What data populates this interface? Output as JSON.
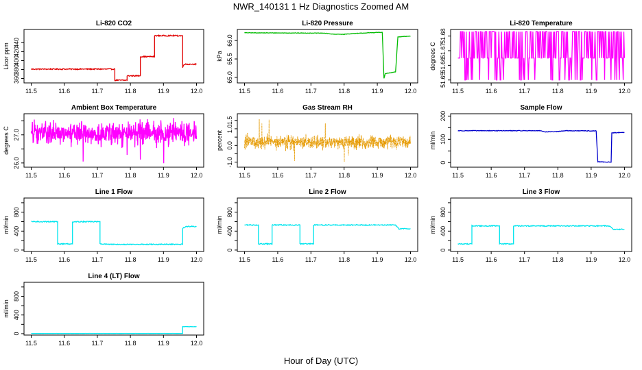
{
  "figure": {
    "title": "NWR_140131  1 Hz Diagnostics Zoomed AM",
    "xlabel": "Hour of Day (UTC)"
  },
  "chart_data": [
    {
      "type": "line",
      "title": "Li-820 CO2",
      "ylabel": "Licor ppm",
      "color": "#e00000",
      "xlim": [
        11.5,
        12.0
      ],
      "ylim": [
        350,
        470
      ],
      "yticks": [
        360,
        380,
        400,
        420,
        440
      ],
      "yticklabels": [
        "360",
        "380",
        "400",
        "420",
        "440"
      ],
      "series": [
        {
          "noise": 1.2,
          "points": [
            [
              11.5,
              381
            ],
            [
              11.753,
              381
            ],
            [
              11.753,
              356
            ],
            [
              11.79,
              356
            ],
            [
              11.79,
              366
            ],
            [
              11.83,
              366
            ],
            [
              11.83,
              409
            ],
            [
              11.873,
              409
            ],
            [
              11.873,
              456
            ],
            [
              11.958,
              456
            ],
            [
              11.958,
              384
            ],
            [
              11.962,
              392
            ],
            [
              12.0,
              392
            ]
          ]
        }
      ]
    },
    {
      "type": "line",
      "title": "Li-820 Pressure",
      "ylabel": "kPa",
      "color": "#00bb00",
      "xlim": [
        11.5,
        12.0
      ],
      "ylim": [
        64.85,
        66.3
      ],
      "yticks": [
        65.0,
        65.5,
        66.0
      ],
      "yticklabels": [
        "65.0",
        "65.5",
        "66.0"
      ],
      "series": [
        {
          "noise": 0.006,
          "points": [
            [
              11.5,
              66.21
            ],
            [
              11.74,
              66.2
            ],
            [
              11.77,
              66.17
            ],
            [
              11.8,
              66.17
            ],
            [
              11.83,
              66.19
            ],
            [
              11.9,
              66.22
            ],
            [
              11.915,
              66.22
            ],
            [
              11.92,
              64.97
            ],
            [
              11.924,
              65.1
            ],
            [
              11.955,
              65.15
            ],
            [
              11.962,
              66.1
            ],
            [
              12.0,
              66.12
            ]
          ]
        }
      ]
    },
    {
      "type": "line",
      "title": "Li-820 Temperature",
      "ylabel": "degrees C",
      "color": "#ff00ff",
      "xlim": [
        11.5,
        12.0
      ],
      "ylim": [
        51.648,
        51.6845
      ],
      "yticks": [
        51.65,
        51.66,
        51.67,
        51.68
      ],
      "yticklabels": [
        "51.65",
        "51.66",
        "51.67",
        "51.68"
      ],
      "series": [
        {
          "pattern": "quantized",
          "levels": [
            51.65,
            51.665,
            51.683
          ],
          "count": 260
        }
      ]
    },
    {
      "type": "line",
      "title": "Ambient Box Temperature",
      "ylabel": "degrees C",
      "color": "#ff00ff",
      "xlim": [
        11.5,
        12.0
      ],
      "ylim": [
        25.85,
        27.75
      ],
      "yticks": [
        26.0,
        26.5,
        27.0,
        27.5
      ],
      "yticklabels": [
        "26.0",
        "",
        "27.0",
        ""
      ],
      "series": [
        {
          "pattern": "noise",
          "center": 27.05,
          "spread": 0.28,
          "count": 700,
          "min": 25.95,
          "max": 27.6
        }
      ]
    },
    {
      "type": "line",
      "title": "Gas Stream RH",
      "ylabel": "percent",
      "color": "#e69a00",
      "xlim": [
        11.5,
        12.0
      ],
      "ylim": [
        -1.3,
        1.9
      ],
      "yticks": [
        -1.0,
        -0.5,
        0.0,
        0.5,
        1.0,
        1.5
      ],
      "yticklabels": [
        "-1.0",
        "",
        "0.0",
        "",
        "1.0",
        "1.5"
      ],
      "series": [
        {
          "pattern": "noise",
          "center": 0.2,
          "spread": 0.28,
          "count": 900,
          "min": -1.2,
          "max": 1.75,
          "dots": true
        }
      ]
    },
    {
      "type": "line",
      "title": "Sample Flow",
      "ylabel": "ml/min",
      "color": "#0000cc",
      "xlim": [
        11.5,
        12.0
      ],
      "ylim": [
        -20,
        210
      ],
      "yticks": [
        0,
        50,
        100,
        150,
        200
      ],
      "yticklabels": [
        "0",
        "",
        "100",
        "",
        "200"
      ],
      "series": [
        {
          "noise": 1.2,
          "points": [
            [
              11.5,
              137
            ],
            [
              11.75,
              137
            ],
            [
              11.76,
              132
            ],
            [
              11.8,
              133
            ],
            [
              11.82,
              137
            ],
            [
              11.91,
              136
            ],
            [
              11.915,
              136
            ],
            [
              11.92,
              3
            ],
            [
              11.96,
              2
            ],
            [
              11.962,
              128
            ],
            [
              12.0,
              129
            ]
          ]
        }
      ]
    },
    {
      "type": "line",
      "title": "Line 1 Flow",
      "ylabel": "ml/min",
      "color": "#00e5ee",
      "xlim": [
        11.5,
        12.0
      ],
      "ylim": [
        -30,
        1100
      ],
      "yticks": [
        0,
        200,
        400,
        600,
        800,
        1000
      ],
      "yticklabels": [
        "0",
        "",
        "400",
        "",
        "800",
        ""
      ],
      "series": [
        {
          "noise": 10,
          "points": [
            [
              11.5,
              600
            ],
            [
              11.58,
              600
            ],
            [
              11.58,
              130
            ],
            [
              11.625,
              130
            ],
            [
              11.625,
              600
            ],
            [
              11.708,
              600
            ],
            [
              11.708,
              130
            ],
            [
              11.74,
              120
            ],
            [
              11.958,
              120
            ],
            [
              11.958,
              460
            ],
            [
              11.97,
              500
            ],
            [
              12.0,
              500
            ]
          ]
        }
      ]
    },
    {
      "type": "line",
      "title": "Line 2 Flow",
      "ylabel": "ml/min",
      "color": "#00e5ee",
      "xlim": [
        11.5,
        12.0
      ],
      "ylim": [
        -30,
        1100
      ],
      "yticks": [
        0,
        200,
        400,
        600,
        800,
        1000
      ],
      "yticklabels": [
        "0",
        "",
        "400",
        "",
        "800",
        ""
      ],
      "series": [
        {
          "noise": 10,
          "points": [
            [
              11.5,
              530
            ],
            [
              11.542,
              530
            ],
            [
              11.542,
              130
            ],
            [
              11.583,
              130
            ],
            [
              11.583,
              530
            ],
            [
              11.667,
              530
            ],
            [
              11.667,
              130
            ],
            [
              11.708,
              130
            ],
            [
              11.708,
              530
            ],
            [
              11.955,
              530
            ],
            [
              11.965,
              450
            ],
            [
              12.0,
              450
            ]
          ]
        }
      ]
    },
    {
      "type": "line",
      "title": "Line 3 Flow",
      "ylabel": "ml/min",
      "color": "#00e5ee",
      "xlim": [
        11.5,
        12.0
      ],
      "ylim": [
        -30,
        1100
      ],
      "yticks": [
        0,
        200,
        400,
        600,
        800,
        1000
      ],
      "yticklabels": [
        "0",
        "",
        "400",
        "",
        "800",
        ""
      ],
      "series": [
        {
          "noise": 10,
          "points": [
            [
              11.5,
              130
            ],
            [
              11.542,
              130
            ],
            [
              11.542,
              510
            ],
            [
              11.625,
              510
            ],
            [
              11.625,
              130
            ],
            [
              11.667,
              130
            ],
            [
              11.667,
              510
            ],
            [
              11.955,
              510
            ],
            [
              11.965,
              440
            ],
            [
              12.0,
              440
            ]
          ]
        }
      ]
    },
    {
      "type": "line",
      "title": "Line 4 (LT) Flow",
      "ylabel": "ml/min",
      "color": "#00e5ee",
      "xlim": [
        11.5,
        12.0
      ],
      "ylim": [
        -30,
        1100
      ],
      "yticks": [
        0,
        200,
        400,
        600,
        800,
        1000
      ],
      "yticklabels": [
        "0",
        "",
        "400",
        "",
        "800",
        ""
      ],
      "series": [
        {
          "noise": 2,
          "points": [
            [
              11.5,
              5
            ],
            [
              11.958,
              5
            ],
            [
              11.958,
              150
            ],
            [
              12.0,
              150
            ]
          ]
        }
      ]
    }
  ],
  "xaxis": {
    "ticks": [
      11.5,
      11.6,
      11.7,
      11.8,
      11.9,
      12.0
    ],
    "labels": [
      "11.5",
      "11.6",
      "11.7",
      "11.8",
      "11.9",
      "12.0"
    ]
  }
}
